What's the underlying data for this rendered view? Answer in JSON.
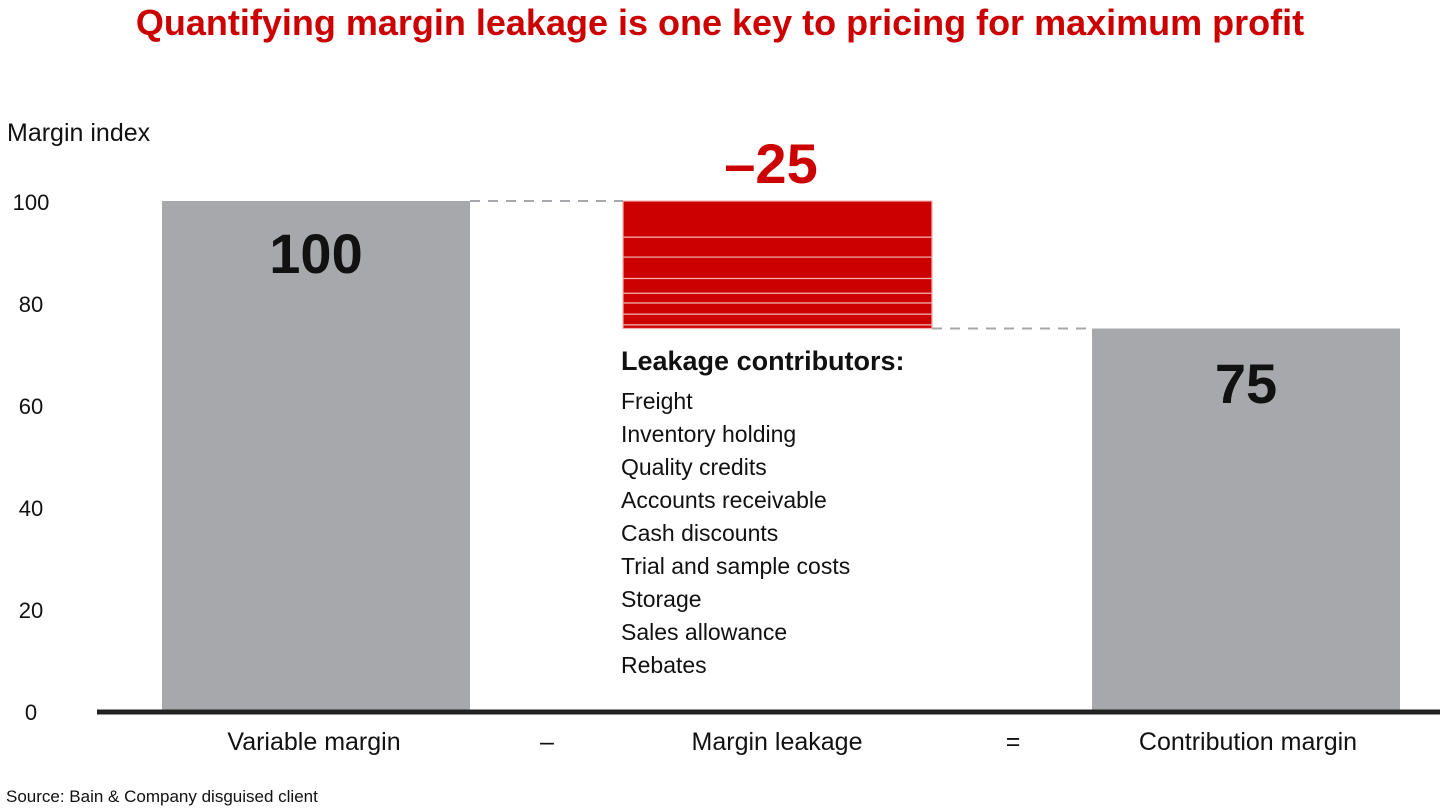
{
  "title": "Quantifying margin leakage is one key to pricing for maximum profit",
  "source": "Source: Bain & Company disguised client",
  "chart_data": {
    "type": "waterfall",
    "ylabel": "Margin index",
    "ylim": [
      0,
      100
    ],
    "yticks": [
      "0",
      "20",
      "40",
      "60",
      "80",
      "100"
    ],
    "grid": false,
    "categories": [
      "Variable margin",
      "Margin leakage",
      "Contribution margin"
    ],
    "operators": [
      "–",
      "="
    ],
    "values": [
      100,
      -25,
      75
    ],
    "data_labels": [
      "100",
      "–25",
      "75"
    ],
    "leakage_segments": [
      7.1,
      3.9,
      4.2,
      2.9,
      1.9,
      2.2,
      2.1,
      0.7
    ],
    "colors": {
      "total": "#a7a8ab",
      "leakage": "#cc0000",
      "connector": "#a7a8ab"
    },
    "annotation": {
      "heading": "Leakage contributors:",
      "items": [
        "Freight",
        "Inventory holding",
        "Quality credits",
        "Accounts receivable",
        "Cash discounts",
        "Trial and sample costs",
        "Storage",
        "Sales allowance",
        "Rebates"
      ]
    }
  }
}
